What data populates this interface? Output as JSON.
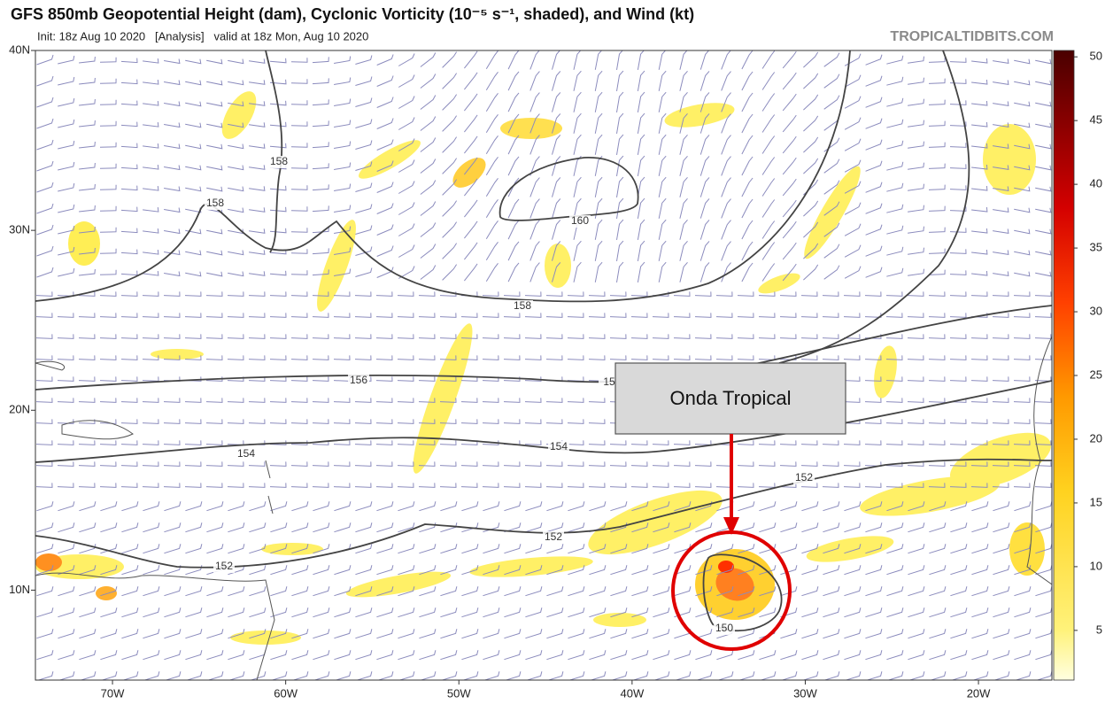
{
  "header": {
    "title": "GFS 850mb Geopotential Height (dam), Cyclonic Vorticity (10⁻⁵ s⁻¹, shaded), and Wind (kt)",
    "subtitle": "Init: 18z Aug 10 2020   [Analysis]   valid at 18z Mon, Aug 10 2020",
    "brand": "TROPICALTIDBITS.COM"
  },
  "map": {
    "lat_range": [
      5,
      40
    ],
    "lon_range": [
      -74.45,
      -15.76
    ],
    "lat_ticks": [
      {
        "value": 40,
        "label": "40N"
      },
      {
        "value": 30,
        "label": "30N"
      },
      {
        "value": 20,
        "label": "20N"
      },
      {
        "value": 10,
        "label": "10N"
      }
    ],
    "lon_ticks": [
      {
        "value": -70,
        "label": "70W"
      },
      {
        "value": -60,
        "label": "60W"
      },
      {
        "value": -50,
        "label": "50W"
      },
      {
        "value": -40,
        "label": "40W"
      },
      {
        "value": -30,
        "label": "30W"
      },
      {
        "value": -20,
        "label": "20W"
      }
    ],
    "contour_labels": [
      "158",
      "158",
      "160",
      "158",
      "156",
      "15",
      "154",
      "154",
      "152",
      "152",
      "152",
      "150"
    ]
  },
  "colorbar": {
    "range": [
      1.1,
      50.5
    ],
    "ticks": [
      5,
      10,
      15,
      20,
      25,
      30,
      35,
      40,
      45,
      50
    ]
  },
  "annotation": {
    "text": "Onda Tropical"
  }
}
